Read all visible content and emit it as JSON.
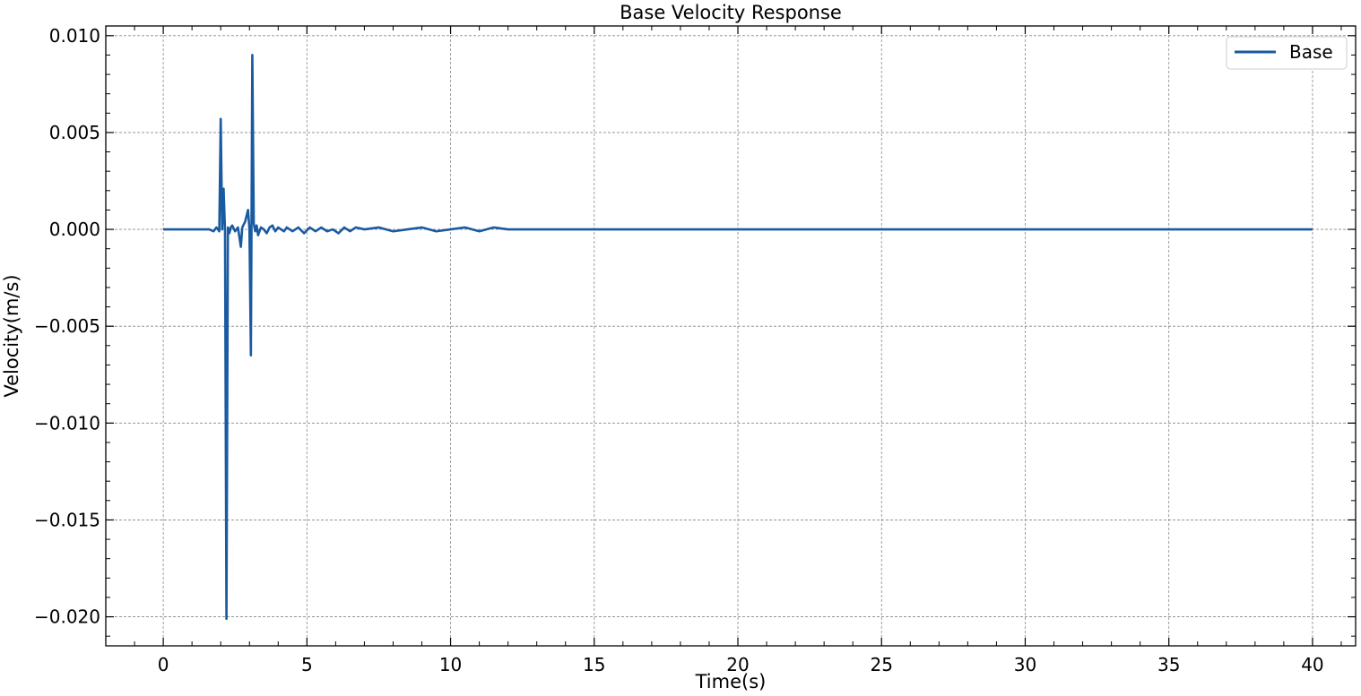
{
  "chart_data": {
    "type": "line",
    "title": "Base Velocity Response",
    "xlabel": "Time(s)",
    "ylabel": "Velocity(m/s)",
    "xlim": [
      -2,
      41.5
    ],
    "ylim": [
      -0.0215,
      0.0105
    ],
    "xticks": [
      0,
      5,
      10,
      15,
      20,
      25,
      30,
      35,
      40
    ],
    "xtick_labels": [
      "0",
      "5",
      "10",
      "15",
      "20",
      "25",
      "30",
      "35",
      "40"
    ],
    "yticks": [
      0.01,
      0.005,
      0.0,
      -0.005,
      -0.01,
      -0.015,
      -0.02
    ],
    "ytick_labels": [
      "0.010",
      "0.005",
      "0.000",
      "−0.005",
      "−0.010",
      "−0.015",
      "−0.020"
    ],
    "grid": true,
    "legend_position": "top-right",
    "series": [
      {
        "name": "Base",
        "color": "#1a5aa0",
        "x": [
          0,
          1.0,
          1.6,
          1.75,
          1.85,
          1.95,
          2.0,
          2.05,
          2.1,
          2.15,
          2.2,
          2.25,
          2.3,
          2.35,
          2.4,
          2.5,
          2.6,
          2.7,
          2.75,
          2.85,
          2.95,
          3.0,
          3.05,
          3.1,
          3.15,
          3.2,
          3.25,
          3.3,
          3.4,
          3.5,
          3.6,
          3.7,
          3.8,
          3.9,
          4.0,
          4.1,
          4.2,
          4.3,
          4.5,
          4.7,
          4.9,
          5.1,
          5.3,
          5.5,
          5.7,
          5.9,
          6.1,
          6.3,
          6.5,
          6.7,
          7.0,
          7.5,
          8.0,
          8.5,
          9.0,
          9.5,
          10.0,
          10.5,
          11.0,
          11.5,
          12.0,
          12.5,
          13.0,
          14.0,
          15.0,
          17.0,
          20.0,
          25.0,
          30.0,
          35.0,
          40.0
        ],
        "y": [
          0.0,
          0.0,
          0.0,
          -0.0001,
          0.0001,
          -0.0001,
          0.0057,
          0.0,
          0.0021,
          -0.0001,
          -0.0201,
          0.0001,
          -0.0002,
          0.0001,
          0.0002,
          -0.0001,
          0.0001,
          -0.0009,
          0.0001,
          0.0004,
          0.001,
          0.0,
          -0.0065,
          0.009,
          0.0003,
          -0.0001,
          0.0002,
          -0.0003,
          0.0001,
          0.0,
          -0.0002,
          0.0001,
          0.0002,
          -0.0001,
          0.0001,
          0.0,
          -0.0001,
          0.0001,
          -0.0001,
          0.0001,
          -0.0002,
          0.0001,
          -0.0001,
          0.0001,
          -0.0001,
          0.0,
          -0.0002,
          0.0001,
          -0.0001,
          0.0001,
          0.0,
          0.0001,
          -0.0001,
          0.0,
          0.0001,
          -0.0001,
          0.0,
          0.0001,
          -0.0001,
          0.0001,
          0.0,
          0.0,
          0.0,
          0.0,
          0.0,
          0.0,
          0.0,
          0.0,
          0.0,
          0.0,
          0.0
        ]
      }
    ]
  }
}
